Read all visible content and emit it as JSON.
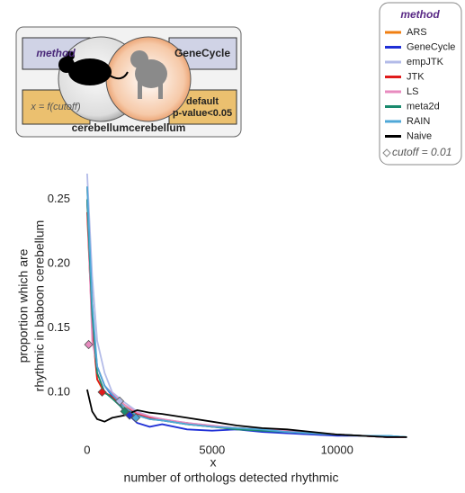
{
  "inset": {
    "left_box": "method",
    "right_box": "GeneCycle",
    "left_formula": "x = f(cutoff)",
    "right_text": [
      "default",
      "p-value<0.05"
    ],
    "bottom_label": "cerebellumcerebellum"
  },
  "chart_data": {
    "type": "line",
    "legend_title": "method",
    "legend_note": "cutoff = 0.01",
    "legend_position": "top-right",
    "x_label": "x",
    "x_title": "number of orthologs detected rhythmic",
    "y_title": [
      "proportion which are",
      "rhythmic in baboon cerebellum"
    ],
    "x": [
      0,
      200,
      400,
      700,
      1000,
      1500,
      2000,
      2500,
      3000,
      4000,
      5000,
      6000,
      7000,
      8000,
      9000,
      10000,
      11000,
      12000,
      12800
    ],
    "xlim": [
      -500,
      13500
    ],
    "xticks": [
      0,
      5000,
      10000
    ],
    "ylim": [
      0.06,
      0.27
    ],
    "yticks": [
      {
        "value": 0.1,
        "label": "0.10"
      },
      {
        "value": 0.15,
        "label": "0.15"
      },
      {
        "value": 0.2,
        "label": "0.20"
      },
      {
        "value": 0.25,
        "label": "0.25"
      }
    ],
    "grid": false,
    "series": [
      {
        "name": "ARS",
        "color": "#f07f12",
        "values": [
          0.26,
          0.17,
          0.11,
          0.099,
          0.097,
          0.09,
          0.082,
          0.08,
          0.078,
          0.075,
          0.073,
          0.071,
          0.07,
          0.069,
          0.068,
          0.067,
          0.066,
          0.065,
          0.065
        ]
      },
      {
        "name": "GeneCycle",
        "color": "#1f2fd6",
        "values": [
          0.25,
          0.16,
          0.12,
          0.105,
          0.097,
          0.085,
          0.076,
          0.073,
          0.075,
          0.071,
          0.07,
          0.071,
          0.069,
          0.068,
          0.067,
          0.066,
          0.066,
          0.065,
          0.065
        ],
        "cutoff": [
          1700,
          0.082
        ]
      },
      {
        "name": "empJTK",
        "color": "#b3bbe8",
        "values": [
          0.27,
          0.19,
          0.14,
          0.115,
          0.1,
          0.092,
          0.085,
          0.081,
          0.079,
          0.076,
          0.074,
          0.072,
          0.071,
          0.069,
          0.068,
          0.067,
          0.066,
          0.066,
          0.065
        ],
        "cutoff": [
          1300,
          0.093
        ]
      },
      {
        "name": "JTK",
        "color": "#e01b1b",
        "values": [
          0.24,
          0.15,
          0.11,
          0.1,
          0.096,
          0.088,
          0.083,
          0.08,
          0.078,
          0.076,
          0.073,
          0.072,
          0.071,
          0.069,
          0.068,
          0.067,
          0.066,
          0.065,
          0.065
        ],
        "cutoff": [
          600,
          0.1
        ]
      },
      {
        "name": "LS",
        "color": "#e88bbf",
        "values": [
          0.25,
          0.14,
          0.12,
          0.105,
          0.099,
          0.09,
          0.084,
          0.081,
          0.079,
          0.076,
          0.074,
          0.072,
          0.071,
          0.07,
          0.068,
          0.067,
          0.066,
          0.065,
          0.065
        ],
        "cutoff": [
          60,
          0.137
        ]
      },
      {
        "name": "meta2d",
        "color": "#1a8a6e",
        "values": [
          0.25,
          0.16,
          0.115,
          0.1,
          0.095,
          0.086,
          0.082,
          0.079,
          0.078,
          0.075,
          0.073,
          0.071,
          0.07,
          0.069,
          0.068,
          0.067,
          0.066,
          0.066,
          0.065
        ],
        "cutoff": [
          1500,
          0.085
        ]
      },
      {
        "name": "RAIN",
        "color": "#4fa8d8",
        "values": [
          0.26,
          0.17,
          0.12,
          0.105,
          0.098,
          0.088,
          0.082,
          0.079,
          0.078,
          0.075,
          0.073,
          0.072,
          0.071,
          0.069,
          0.068,
          0.067,
          0.066,
          0.066,
          0.065
        ],
        "cutoff": [
          1950,
          0.08
        ]
      },
      {
        "name": "Naive",
        "color": "#000000",
        "values": [
          0.102,
          0.085,
          0.079,
          0.077,
          0.08,
          0.082,
          0.086,
          0.084,
          0.083,
          0.08,
          0.077,
          0.074,
          0.072,
          0.071,
          0.069,
          0.067,
          0.066,
          0.065,
          0.065
        ]
      }
    ]
  }
}
